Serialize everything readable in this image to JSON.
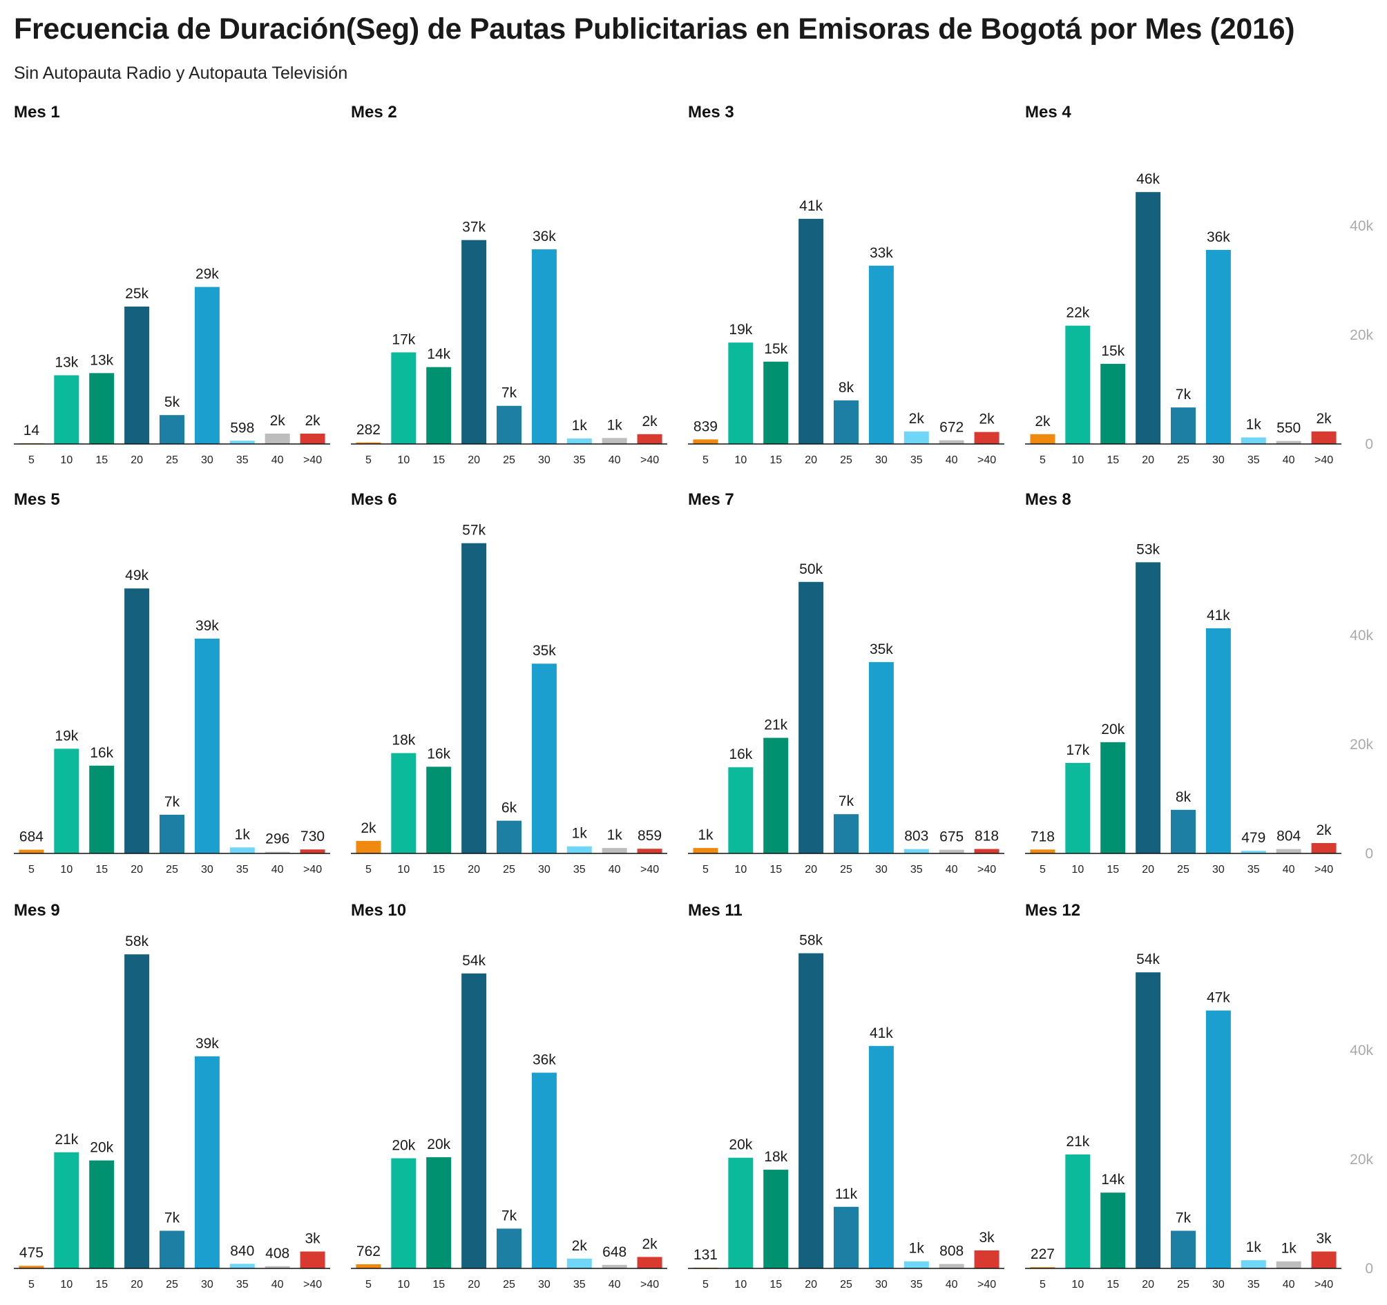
{
  "title": "Frecuencia de Duración(Seg) de Pautas Publicitarias en Emisoras de Bogotá por Mes (2016)",
  "subtitle": "Sin Autopauta Radio y Autopauta Televisión",
  "chart_data": {
    "type": "bar",
    "categories": [
      "5",
      "10",
      "15",
      "20",
      "25",
      "30",
      "35",
      "40",
      ">40"
    ],
    "colors": [
      "#f0890f",
      "#0bba9a",
      "#009171",
      "#15617d",
      "#1e7fa4",
      "#1a9fce",
      "#6fd6f8",
      "#bdbdbd",
      "#d93a2f"
    ],
    "axis_color": "#aaaaaa",
    "ylim": [
      0,
      58000
    ],
    "yticks": [
      0,
      20000,
      40000
    ],
    "ytick_labels": [
      "0",
      "20k",
      "40k"
    ],
    "panels": [
      {
        "title": "Mes 1",
        "values": [
          14,
          12600,
          13000,
          25200,
          5300,
          28800,
          598,
          1900,
          1900
        ],
        "labels": [
          "14",
          "13k",
          "13k",
          "25k",
          "5k",
          "29k",
          "598",
          "2k",
          "2k"
        ]
      },
      {
        "title": "Mes 2",
        "values": [
          282,
          16800,
          14100,
          37400,
          7000,
          35700,
          1000,
          1100,
          1800
        ],
        "labels": [
          "282",
          "17k",
          "14k",
          "37k",
          "7k",
          "36k",
          "1k",
          "1k",
          "2k"
        ]
      },
      {
        "title": "Mes 3",
        "values": [
          839,
          18600,
          15100,
          41300,
          8000,
          32700,
          2300,
          672,
          2200
        ],
        "labels": [
          "839",
          "19k",
          "15k",
          "41k",
          "8k",
          "33k",
          "2k",
          "672",
          "2k"
        ]
      },
      {
        "title": "Mes 4",
        "values": [
          1800,
          21700,
          14700,
          46200,
          6700,
          35600,
          1200,
          550,
          2300
        ],
        "labels": [
          "2k",
          "22k",
          "15k",
          "46k",
          "7k",
          "36k",
          "1k",
          "550",
          "2k"
        ]
      },
      {
        "title": "Mes 5",
        "values": [
          684,
          19200,
          16100,
          48600,
          7100,
          39400,
          1100,
          296,
          730
        ],
        "labels": [
          "684",
          "19k",
          "16k",
          "49k",
          "7k",
          "39k",
          "1k",
          "296",
          "730"
        ]
      },
      {
        "title": "Mes 6",
        "values": [
          2300,
          18400,
          15900,
          56900,
          6000,
          34800,
          1300,
          1000,
          859
        ],
        "labels": [
          "2k",
          "18k",
          "16k",
          "57k",
          "6k",
          "35k",
          "1k",
          "1k",
          "859"
        ]
      },
      {
        "title": "Mes 7",
        "values": [
          1000,
          15800,
          21200,
          49800,
          7200,
          35100,
          803,
          675,
          818
        ],
        "labels": [
          "1k",
          "16k",
          "21k",
          "50k",
          "7k",
          "35k",
          "803",
          "675",
          "818"
        ]
      },
      {
        "title": "Mes 8",
        "values": [
          718,
          16600,
          20400,
          53400,
          8000,
          41300,
          479,
          804,
          1900
        ],
        "labels": [
          "718",
          "17k",
          "20k",
          "53k",
          "8k",
          "41k",
          "479",
          "804",
          "2k"
        ]
      },
      {
        "title": "Mes 9",
        "values": [
          475,
          21300,
          19800,
          57600,
          6900,
          38900,
          840,
          408,
          3100
        ],
        "labels": [
          "475",
          "21k",
          "20k",
          "58k",
          "7k",
          "39k",
          "840",
          "408",
          "3k"
        ]
      },
      {
        "title": "Mes 10",
        "values": [
          762,
          20200,
          20400,
          54100,
          7300,
          35900,
          1800,
          648,
          2100
        ],
        "labels": [
          "762",
          "20k",
          "20k",
          "54k",
          "7k",
          "36k",
          "2k",
          "648",
          "2k"
        ]
      },
      {
        "title": "Mes 11",
        "values": [
          131,
          20300,
          18100,
          57800,
          11300,
          40800,
          1300,
          808,
          3300
        ],
        "labels": [
          "131",
          "20k",
          "18k",
          "58k",
          "11k",
          "41k",
          "1k",
          "808",
          "3k"
        ]
      },
      {
        "title": "Mes 12",
        "values": [
          227,
          20900,
          13900,
          54300,
          6900,
          47300,
          1500,
          1300,
          3100
        ],
        "labels": [
          "227",
          "21k",
          "14k",
          "54k",
          "7k",
          "47k",
          "1k",
          "1k",
          "3k"
        ]
      }
    ]
  }
}
